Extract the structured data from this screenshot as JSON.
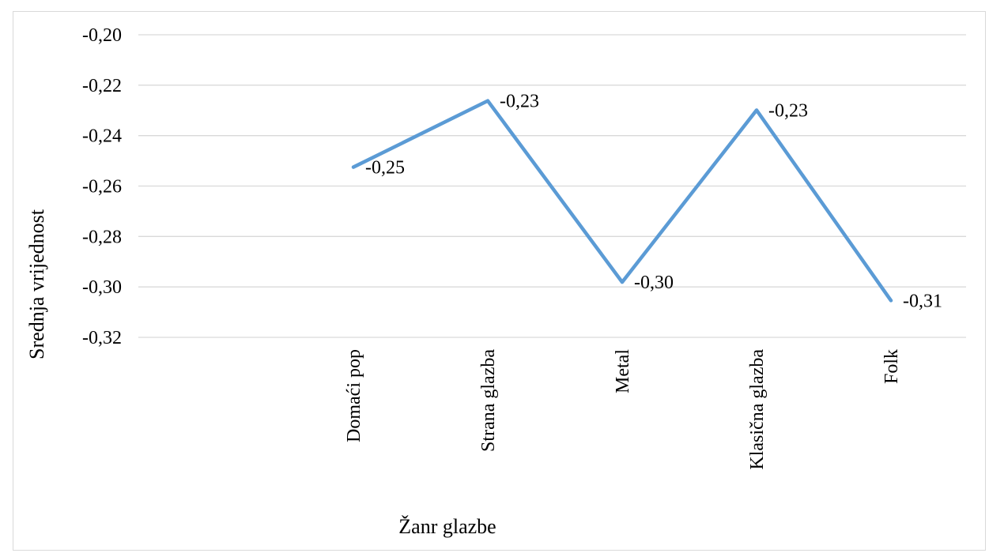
{
  "chart_data": {
    "type": "line",
    "categories": [
      "Domaći pop",
      "Strana glazba",
      "Metal",
      "Klasična glazba",
      "Folk"
    ],
    "series": [
      {
        "values": [
          -0.2525,
          -0.2262,
          -0.2981,
          -0.2299,
          -0.3054
        ],
        "data_labels": [
          "-0,25",
          "-0,23",
          "-0,30",
          "-0,23",
          "-0,31"
        ],
        "color": "#5b9bd5"
      }
    ],
    "xlabel": "Žanr glazbe",
    "ylabel": "Srednja vrijednost",
    "ylim": [
      -0.32,
      -0.2
    ],
    "yticks": [
      -0.2,
      -0.22,
      -0.24,
      -0.26,
      -0.28,
      -0.3,
      -0.32
    ],
    "ytick_labels": [
      "-0,20",
      "-0,22",
      "-0,24",
      "-0,26",
      "-0,28",
      "-0,30",
      "-0,32"
    ],
    "grid": true,
    "legend": "none"
  },
  "colors": {
    "line": "#5b9bd5",
    "grid": "#d9d9d9",
    "frame": "#d9d9d9"
  }
}
